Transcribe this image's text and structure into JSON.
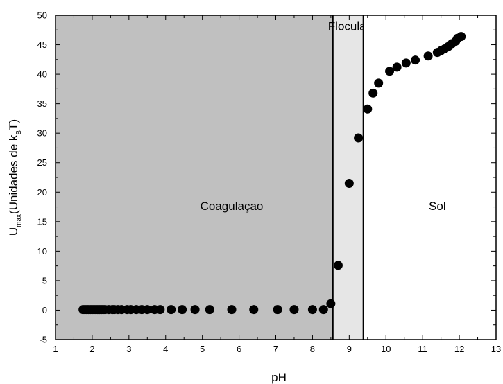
{
  "chart_data": {
    "type": "scatter",
    "xlabel": "pH",
    "ylabel": {
      "main": "U",
      "main_sub": "max",
      "text": "(Unidades de k",
      "text_sub": "B",
      "end": "T)"
    },
    "xlim": [
      1,
      13
    ],
    "ylim": [
      -5,
      50
    ],
    "x_ticks": [
      "1",
      "2",
      "3",
      "4",
      "5",
      "6",
      "7",
      "8",
      "9",
      "10",
      "11",
      "12",
      "13"
    ],
    "y_ticks": [
      "-5",
      "0",
      "5",
      "10",
      "15",
      "20",
      "25",
      "30",
      "35",
      "40",
      "45",
      "50"
    ],
    "grid": false,
    "regions": [
      {
        "label": "Coagulaçao",
        "from": 1,
        "to": 8.55,
        "color": "#c0c0c0",
        "label_x": 5.8,
        "label_y": 17
      },
      {
        "label": "Floculaçao",
        "from": 8.55,
        "to": 9.38,
        "color": "#e6e6e6",
        "label_x": 9.2,
        "label_y": 47.5
      },
      {
        "label": "Sol",
        "from": 9.38,
        "to": 13,
        "color": "#ffffff",
        "label_x": 11.4,
        "label_y": 17
      }
    ],
    "series": [
      {
        "marker_color": "#000000",
        "x": [
          1.75,
          1.8,
          1.85,
          1.9,
          1.95,
          2.0,
          2.05,
          2.1,
          2.15,
          2.2,
          2.25,
          2.3,
          2.35,
          2.45,
          2.55,
          2.6,
          2.7,
          2.8,
          2.95,
          3.05,
          3.2,
          3.35,
          3.5,
          3.7,
          3.85,
          4.15,
          4.45,
          4.8,
          5.2,
          5.8,
          6.4,
          7.05,
          7.5,
          8.0,
          8.3,
          8.5,
          8.7,
          9.0,
          9.25,
          9.5,
          9.65,
          9.8,
          10.1,
          10.3,
          10.55,
          10.8,
          11.15,
          11.4,
          11.5,
          11.6,
          11.7,
          11.8,
          11.9,
          11.95,
          12.05
        ],
        "y": [
          0.1,
          0.1,
          0.1,
          0.1,
          0.1,
          0.1,
          0.1,
          0.1,
          0.1,
          0.1,
          0.1,
          0.1,
          0.1,
          0.1,
          0.1,
          0.1,
          0.1,
          0.1,
          0.1,
          0.1,
          0.1,
          0.1,
          0.1,
          0.1,
          0.1,
          0.1,
          0.1,
          0.1,
          0.1,
          0.1,
          0.1,
          0.1,
          0.1,
          0.1,
          0.1,
          1.1,
          7.6,
          21.5,
          29.2,
          34.1,
          36.8,
          38.5,
          40.5,
          41.2,
          41.9,
          42.4,
          43.1,
          43.7,
          44.0,
          44.3,
          44.7,
          45.2,
          45.6,
          46.1,
          46.4
        ]
      }
    ]
  }
}
